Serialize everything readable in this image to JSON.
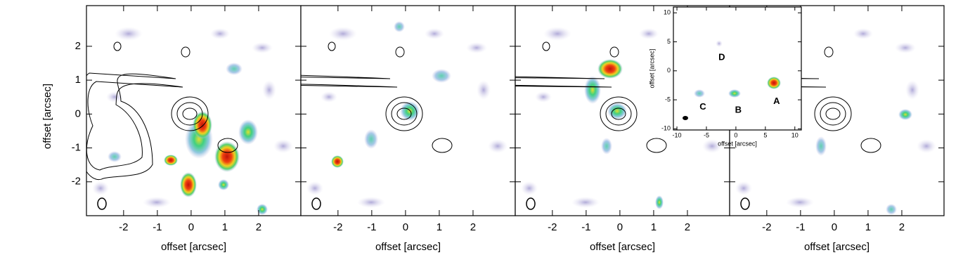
{
  "chart_data": [
    {
      "type": "map",
      "xlim": [
        -3.1,
        3.25
      ],
      "ylim": [
        -3.0,
        3.2
      ],
      "xticks": [
        -2,
        -1,
        0,
        1,
        2
      ],
      "yticks": [
        -2,
        -1,
        0,
        1,
        2
      ],
      "xlabel": "offset [arcsec]",
      "ylabel": "offset [arcsec]"
    },
    {
      "type": "map",
      "xlim": [
        -3.1,
        3.25
      ],
      "ylim": [
        -3.0,
        3.2
      ],
      "xticks": [
        -2,
        -1,
        0,
        1,
        2
      ],
      "yticks": [
        -2,
        -1,
        0,
        1,
        2
      ],
      "xlabel": "offset [arcsec]"
    },
    {
      "type": "map",
      "xlim": [
        -3.1,
        3.25
      ],
      "ylim": [
        -3.0,
        3.2
      ],
      "xticks": [
        -2,
        -1,
        0,
        1,
        2
      ],
      "yticks": [
        -2,
        -1,
        0,
        1,
        2
      ],
      "xlabel": "offset [arcsec]"
    },
    {
      "type": "map",
      "xlim": [
        -3.1,
        3.25
      ],
      "ylim": [
        -3.0,
        3.2
      ],
      "xticks": [
        -2,
        -1,
        0,
        1,
        2
      ],
      "yticks": [
        -2,
        -1,
        0,
        1,
        2
      ],
      "xlabel": "offset [arcsec]"
    },
    {
      "type": "inset",
      "xlim": [
        -10.6,
        11.1
      ],
      "ylim": [
        -10.2,
        11.0
      ],
      "xticks": [
        -10,
        -5,
        0,
        5,
        10
      ],
      "yticks": [
        -10,
        -5,
        0,
        5,
        10
      ],
      "xlabel": "offset [arcsec]",
      "ylabel": "offset [arcsec]",
      "annotations": [
        {
          "text": "A",
          "x": 6.9,
          "y": -5.3
        },
        {
          "text": "B",
          "x": 0.4,
          "y": -6.8
        },
        {
          "text": "C",
          "x": -5.6,
          "y": -6.3
        },
        {
          "text": "D",
          "x": -2.4,
          "y": 2.3
        }
      ]
    }
  ]
}
